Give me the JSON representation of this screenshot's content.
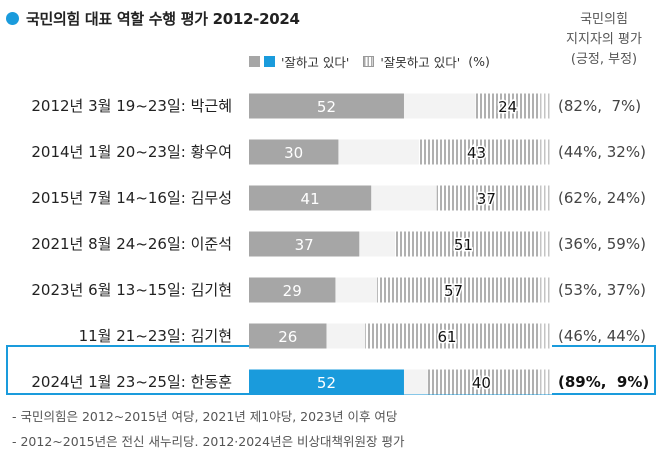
{
  "title": "국민의힘 대표 역할 수행 평가 2012-2024",
  "side_header": [
    "국민의힘",
    "지지자의 평가",
    "(긍정, 부정)"
  ],
  "legend": {
    "good": "'잘하고 있다'",
    "bad": "'잘못하고 있다'",
    "unit": "(%)"
  },
  "colors": {
    "good": "#a6a6a6",
    "highlight": "#1a9bdc",
    "bad_stripe": "#b0b0b0"
  },
  "chart_data": {
    "type": "bar",
    "stacked": true,
    "orientation": "horizontal",
    "categories": [
      "2012년 3월 19~23일: 박근혜",
      "2014년 1월 20~23일: 황우여",
      "2015년 7월 14~16일: 김무성",
      "2021년 8월 24~26일: 이준석",
      "2023년 6월 13~15일: 김기현",
      "11월 21~23일: 김기현",
      "2024년 1월 23~25일: 한동훈"
    ],
    "series": [
      {
        "name": "'잘하고 있다'",
        "values": [
          52,
          30,
          41,
          37,
          29,
          26,
          52
        ]
      },
      {
        "name": "'잘못하고 있다'",
        "values": [
          24,
          43,
          37,
          51,
          57,
          61,
          40
        ]
      }
    ],
    "supporters": [
      "(82%,  7%)",
      "(44%, 32%)",
      "(62%, 24%)",
      "(36%, 59%)",
      "(53%, 37%)",
      "(46%, 44%)",
      "(89%,  9%)"
    ],
    "highlight_index": 6,
    "xlim": [
      0,
      100
    ]
  },
  "notes": [
    "- 국민의힘은 2012~2015년 여당, 2021년 제1야당, 2023년 이후 여당",
    "- 2012~2015년은 전신 새누리당. 2012·2024년은 비상대책위원장 평가"
  ]
}
